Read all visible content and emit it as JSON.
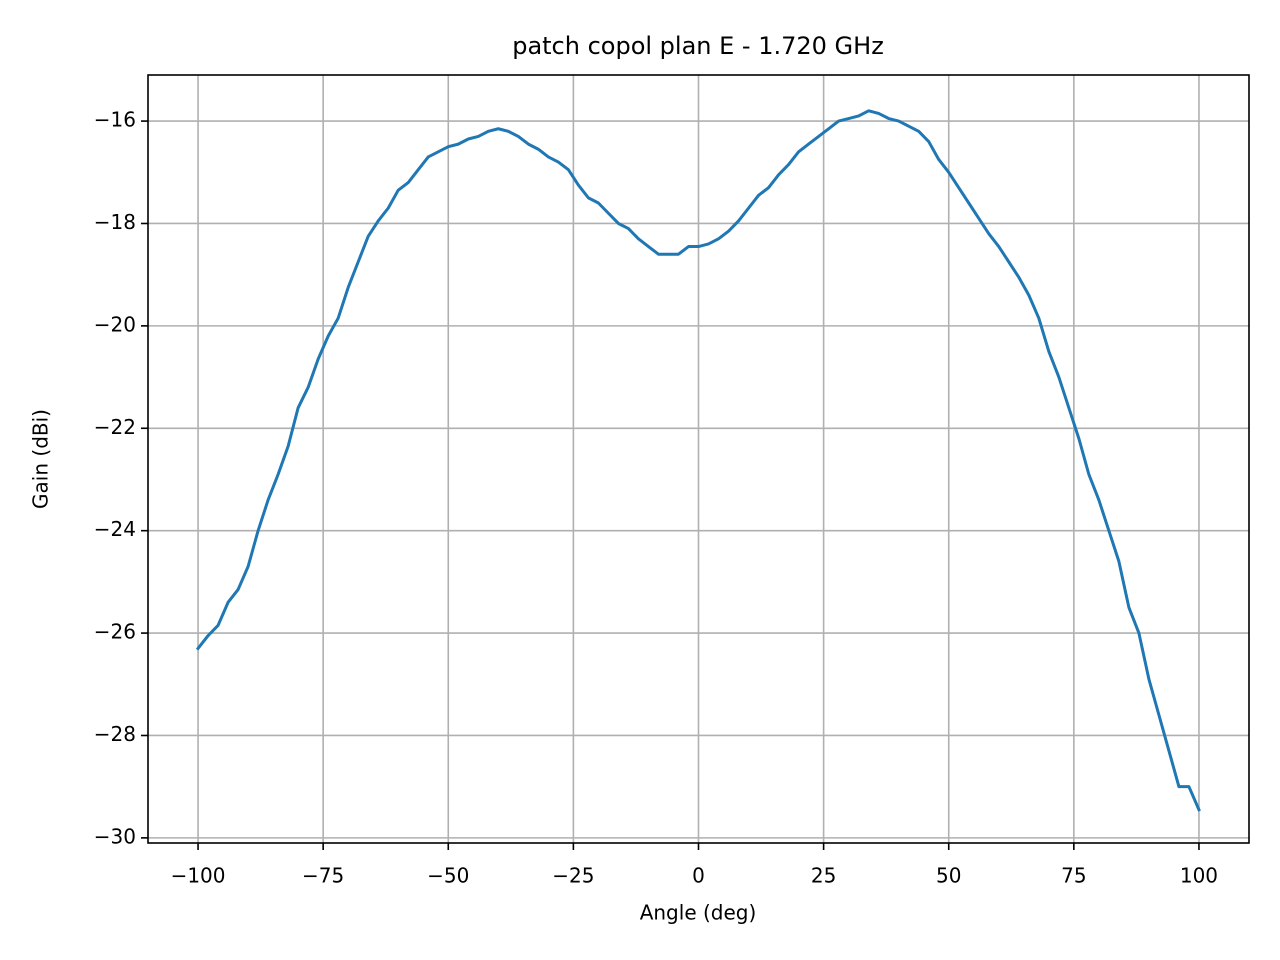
{
  "chart_data": {
    "type": "line",
    "title": "patch copol plan E - 1.720 GHz",
    "xlabel": "Angle (deg)",
    "ylabel": "Gain (dBi)",
    "color": "#1f77b4",
    "grid": true,
    "xlim": [
      -110,
      110
    ],
    "ylim": [
      -30.1,
      -15.1
    ],
    "xticks": [
      {
        "value": -100,
        "label": "−100"
      },
      {
        "value": -75,
        "label": "−75"
      },
      {
        "value": -50,
        "label": "−50"
      },
      {
        "value": -25,
        "label": "−25"
      },
      0,
      25,
      50,
      75,
      100
    ],
    "yticks": [
      {
        "value": -30,
        "label": "−30"
      },
      {
        "value": -28,
        "label": "−28"
      },
      {
        "value": -26,
        "label": "−26"
      },
      {
        "value": -24,
        "label": "−24"
      },
      {
        "value": -22,
        "label": "−22"
      },
      {
        "value": -20,
        "label": "−20"
      },
      {
        "value": -18,
        "label": "−18"
      },
      {
        "value": -16,
        "label": "−16"
      }
    ],
    "x": [
      -100,
      -98,
      -96,
      -94,
      -92,
      -90,
      -88,
      -86,
      -84,
      -82,
      -80,
      -78,
      -76,
      -74,
      -72,
      -70,
      -68,
      -66,
      -64,
      -62,
      -60,
      -58,
      -56,
      -54,
      -52,
      -50,
      -48,
      -46,
      -44,
      -42,
      -40,
      -38,
      -36,
      -34,
      -32,
      -30,
      -28,
      -26,
      -24,
      -22,
      -20,
      -18,
      -16,
      -14,
      -12,
      -10,
      -8,
      -6,
      -4,
      -2,
      0,
      2,
      4,
      6,
      8,
      10,
      12,
      14,
      16,
      18,
      20,
      22,
      24,
      26,
      28,
      30,
      32,
      34,
      36,
      38,
      40,
      42,
      44,
      46,
      48,
      50,
      52,
      54,
      56,
      58,
      60,
      62,
      64,
      66,
      68,
      70,
      72,
      74,
      76,
      78,
      80,
      82,
      84,
      86,
      88,
      90,
      92,
      94,
      96,
      98,
      100
    ],
    "values": [
      -26.3,
      -26.05,
      -25.85,
      -25.4,
      -25.15,
      -24.7,
      -24.0,
      -23.4,
      -22.9,
      -22.35,
      -21.6,
      -21.2,
      -20.65,
      -20.2,
      -19.85,
      -19.25,
      -18.75,
      -18.25,
      -17.95,
      -17.7,
      -17.35,
      -17.2,
      -16.95,
      -16.7,
      -16.6,
      -16.5,
      -16.45,
      -16.35,
      -16.3,
      -16.2,
      -16.15,
      -16.2,
      -16.3,
      -16.45,
      -16.55,
      -16.7,
      -16.8,
      -16.95,
      -17.25,
      -17.5,
      -17.6,
      -17.8,
      -18.0,
      -18.1,
      -18.3,
      -18.45,
      -18.6,
      -18.6,
      -18.6,
      -18.45,
      -18.45,
      -18.4,
      -18.3,
      -18.15,
      -17.95,
      -17.7,
      -17.45,
      -17.3,
      -17.05,
      -16.85,
      -16.6,
      -16.45,
      -16.3,
      -16.15,
      -16.0,
      -15.95,
      -15.9,
      -15.8,
      -15.85,
      -15.95,
      -16.0,
      -16.1,
      -16.2,
      -16.4,
      -16.75,
      -17.0,
      -17.3,
      -17.6,
      -17.9,
      -18.2,
      -18.45,
      -18.75,
      -19.05,
      -19.4,
      -19.85,
      -20.5,
      -21.0,
      -21.6,
      -22.2,
      -22.9,
      -23.4,
      -24.0,
      -24.6,
      -25.5,
      -26.0,
      -26.9,
      -27.6,
      -28.3,
      -29.0,
      -29.0,
      -29.45
    ]
  }
}
